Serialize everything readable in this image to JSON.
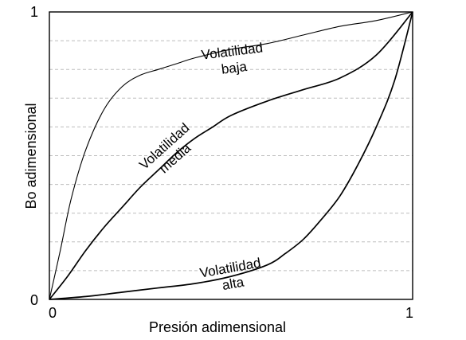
{
  "chart_data": {
    "type": "line",
    "title": "",
    "xlabel": "Presión adimensional",
    "ylabel": "Bo adimensional",
    "xlim": [
      0,
      1
    ],
    "ylim": [
      0,
      1
    ],
    "x_ticks": [
      {
        "value": 0,
        "label": "0"
      },
      {
        "value": 1,
        "label": "1"
      }
    ],
    "y_ticks": [
      {
        "value": 0,
        "label": "0"
      },
      {
        "value": 1,
        "label": "1"
      }
    ],
    "grid": {
      "horizontal": true,
      "style": "dashed",
      "count": 10
    },
    "series": [
      {
        "name": "Volatilidad baja",
        "label_lines": [
          "Volatilidad",
          "baja"
        ],
        "color": "#000000",
        "line_weight": "thin",
        "x": [
          0,
          0.03,
          0.06,
          0.1,
          0.15,
          0.2,
          0.25,
          0.3,
          0.35,
          0.4,
          0.5,
          0.6,
          0.7,
          0.8,
          0.9,
          1
        ],
        "y": [
          0,
          0.17,
          0.35,
          0.52,
          0.66,
          0.74,
          0.78,
          0.8,
          0.82,
          0.84,
          0.87,
          0.89,
          0.92,
          0.95,
          0.97,
          1
        ]
      },
      {
        "name": "Volatilidad media",
        "label_lines": [
          "Volatilidad",
          "media"
        ],
        "color": "#000000",
        "line_weight": "medium",
        "x": [
          0,
          0.05,
          0.1,
          0.15,
          0.2,
          0.25,
          0.3,
          0.35,
          0.4,
          0.45,
          0.5,
          0.6,
          0.7,
          0.8,
          0.9,
          1
        ],
        "y": [
          0,
          0.08,
          0.17,
          0.25,
          0.32,
          0.39,
          0.45,
          0.51,
          0.56,
          0.6,
          0.64,
          0.69,
          0.73,
          0.77,
          0.85,
          1
        ]
      },
      {
        "name": "Volatilidad alta",
        "label_lines": [
          "Volatilidad",
          "alta"
        ],
        "color": "#000000",
        "line_weight": "medium",
        "x": [
          0,
          0.1,
          0.2,
          0.3,
          0.4,
          0.5,
          0.6,
          0.65,
          0.7,
          0.75,
          0.8,
          0.85,
          0.9,
          0.95,
          1
        ],
        "y": [
          0,
          0.01,
          0.025,
          0.04,
          0.055,
          0.08,
          0.12,
          0.16,
          0.21,
          0.28,
          0.36,
          0.47,
          0.6,
          0.76,
          1
        ]
      }
    ]
  }
}
